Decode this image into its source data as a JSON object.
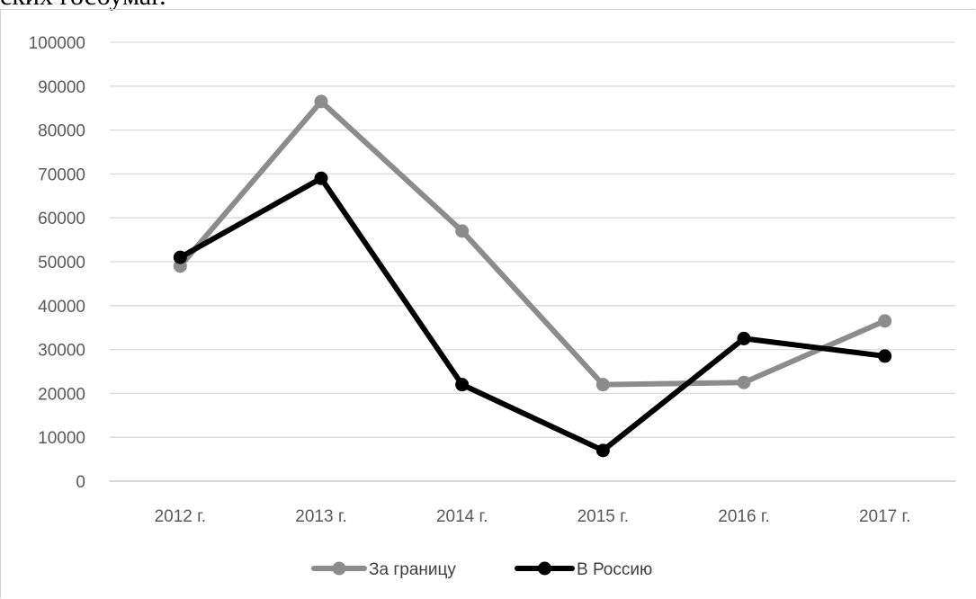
{
  "top_text": "ских госбумаг.",
  "chart_data": {
    "type": "line",
    "title": "",
    "xlabel": "",
    "ylabel": "",
    "categories": [
      "2012 г.",
      "2013 г.",
      "2014 г.",
      "2015 г.",
      "2016 г.",
      "2017 г."
    ],
    "ylim": [
      0,
      100000
    ],
    "yticks": [
      0,
      10000,
      20000,
      30000,
      40000,
      50000,
      60000,
      70000,
      80000,
      90000,
      100000
    ],
    "grid": true,
    "legend_position": "bottom",
    "series": [
      {
        "name": "За границу",
        "color": "#8c8c8c",
        "values": [
          49000,
          86500,
          57000,
          22000,
          22500,
          36500
        ]
      },
      {
        "name": "В Россию",
        "color": "#000000",
        "values": [
          51000,
          69000,
          22000,
          7000,
          32500,
          28500
        ]
      }
    ]
  }
}
